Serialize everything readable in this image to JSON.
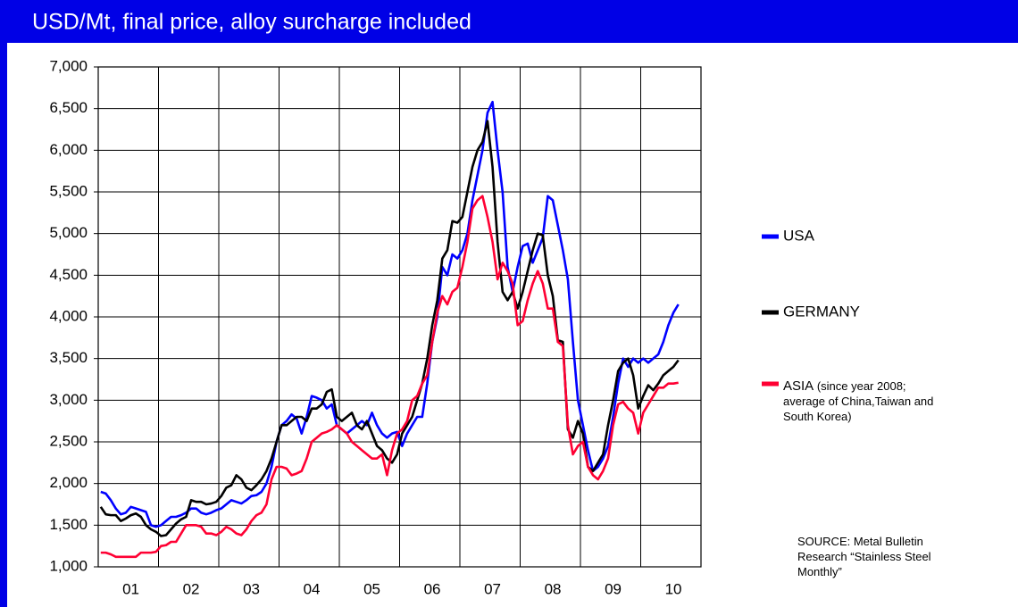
{
  "chart_data": {
    "type": "line",
    "title": "USD/Mt, final price, alloy surcharge included",
    "source": "SOURCE: Metal Bulletin Research “Stainless Steel Monthly”",
    "categories": [
      null,
      null,
      null,
      null,
      null,
      null,
      "01",
      null,
      null,
      null,
      null,
      null,
      null,
      null,
      null,
      null,
      null,
      null,
      "02",
      null,
      null,
      null,
      null,
      null,
      null,
      null,
      null,
      null,
      null,
      null,
      "03",
      null,
      null,
      null,
      null,
      null,
      null,
      null,
      null,
      null,
      null,
      null,
      "04",
      null,
      null,
      null,
      null,
      null,
      null,
      null,
      null,
      null,
      null,
      null,
      "05",
      null,
      null,
      null,
      null,
      null,
      null,
      null,
      null,
      null,
      null,
      null,
      "06",
      null,
      null,
      null,
      null,
      null,
      null,
      null,
      null,
      null,
      null,
      null,
      "07",
      null,
      null,
      null,
      null,
      null,
      null,
      null,
      null,
      null,
      null,
      null,
      "08",
      null,
      null,
      null,
      null,
      null,
      null,
      null,
      null,
      null,
      null,
      null,
      "09",
      null,
      null,
      null,
      null,
      null,
      null,
      null,
      null,
      null,
      null,
      null,
      "10",
      null
    ],
    "series": [
      {
        "name": "USA",
        "color": "#0000ff",
        "values": [
          1900,
          1880,
          1800,
          1700,
          1630,
          1650,
          1720,
          1700,
          1680,
          1660,
          1500,
          1480,
          1500,
          1550,
          1600,
          1600,
          1620,
          1650,
          1700,
          1700,
          1650,
          1630,
          1650,
          1680,
          1700,
          1750,
          1800,
          1780,
          1760,
          1800,
          1850,
          1860,
          1900,
          2000,
          2200,
          2500,
          2700,
          2750,
          2830,
          2780,
          2600,
          2800,
          3050,
          3030,
          3000,
          2900,
          2950,
          2700,
          2650,
          2600,
          2650,
          2700,
          2750,
          2700,
          2850,
          2700,
          2600,
          2550,
          2600,
          2620,
          2450,
          2600,
          2700,
          2800,
          2800,
          3200,
          3700,
          4000,
          4600,
          4500,
          4750,
          4700,
          4800,
          5000,
          5400,
          5700,
          6000,
          6450,
          6580,
          6000,
          5500,
          4600,
          4300,
          4600,
          4850,
          4880,
          4650,
          4800,
          4950,
          5450,
          5400,
          5100,
          4800,
          4450,
          3700,
          3000,
          2700,
          2400,
          2150,
          2200,
          2300,
          2450,
          2800,
          3200,
          3500,
          3400,
          3500,
          3450,
          3500,
          3450,
          3500,
          3550,
          3700,
          3900,
          4050,
          4150
        ]
      },
      {
        "name": "GERMANY",
        "color": "#000000",
        "values": [
          1720,
          1630,
          1620,
          1620,
          1550,
          1580,
          1620,
          1640,
          1600,
          1500,
          1450,
          1420,
          1370,
          1380,
          1450,
          1520,
          1570,
          1600,
          1800,
          1780,
          1780,
          1750,
          1760,
          1780,
          1850,
          1950,
          1980,
          2100,
          2050,
          1950,
          1920,
          1980,
          2050,
          2150,
          2300,
          2500,
          2700,
          2700,
          2750,
          2800,
          2800,
          2750,
          2900,
          2900,
          2950,
          3100,
          3130,
          2800,
          2750,
          2800,
          2850,
          2700,
          2650,
          2750,
          2600,
          2450,
          2400,
          2300,
          2250,
          2350,
          2600,
          2700,
          2800,
          3000,
          3200,
          3500,
          3900,
          4200,
          4700,
          4800,
          5150,
          5130,
          5200,
          5500,
          5800,
          6000,
          6100,
          6350,
          5800,
          4900,
          4300,
          4200,
          4300,
          4100,
          4300,
          4550,
          4800,
          5000,
          4980,
          4500,
          4250,
          3720,
          3700,
          2650,
          2550,
          2750,
          2600,
          2200,
          2150,
          2250,
          2350,
          2700,
          3000,
          3350,
          3450,
          3500,
          3300,
          2900,
          3050,
          3180,
          3120,
          3200,
          3300,
          3350,
          3400,
          3480
        ]
      },
      {
        "name": "ASIA",
        "note": "(since year 2008; average of China,Taiwan and South Korea)",
        "color": "#ff0033",
        "values": [
          1170,
          1170,
          1150,
          1120,
          1120,
          1120,
          1120,
          1120,
          1170,
          1170,
          1170,
          1180,
          1250,
          1260,
          1300,
          1300,
          1400,
          1500,
          1500,
          1500,
          1480,
          1400,
          1400,
          1380,
          1420,
          1480,
          1450,
          1400,
          1380,
          1450,
          1550,
          1620,
          1650,
          1750,
          2050,
          2200,
          2200,
          2180,
          2100,
          2120,
          2150,
          2300,
          2500,
          2550,
          2600,
          2620,
          2650,
          2700,
          2650,
          2600,
          2500,
          2450,
          2400,
          2350,
          2300,
          2300,
          2350,
          2100,
          2400,
          2600,
          2650,
          2750,
          3000,
          3050,
          3200,
          3300,
          3700,
          4050,
          4250,
          4150,
          4300,
          4350,
          4600,
          4900,
          5300,
          5400,
          5450,
          5200,
          4900,
          4450,
          4650,
          4550,
          4400,
          3900,
          3950,
          4200,
          4400,
          4550,
          4400,
          4100,
          4100,
          3700,
          3650,
          2700,
          2350,
          2450,
          2500,
          2200,
          2100,
          2050,
          2150,
          2300,
          2700,
          2950,
          2980,
          2900,
          2850,
          2600,
          2850,
          2950,
          3050,
          3150,
          3150,
          3200,
          3200,
          3210
        ]
      }
    ],
    "ylim": [
      1000,
      7000
    ],
    "yticks": [
      {
        "value": 1000,
        "label": "1,000"
      },
      {
        "value": 1500,
        "label": "1,500"
      },
      {
        "value": 2000,
        "label": "2,000"
      },
      {
        "value": 2500,
        "label": "2,500"
      },
      {
        "value": 3000,
        "label": "3,000"
      },
      {
        "value": 3500,
        "label": "3,500"
      },
      {
        "value": 4000,
        "label": "4,000"
      },
      {
        "value": 4500,
        "label": "4,500"
      },
      {
        "value": 5000,
        "label": "5,000"
      },
      {
        "value": 5500,
        "label": "5,500"
      },
      {
        "value": 6000,
        "label": "6,000"
      },
      {
        "value": 6500,
        "label": "6,500"
      },
      {
        "value": 7000,
        "label": "7,000"
      }
    ],
    "grid": true
  }
}
